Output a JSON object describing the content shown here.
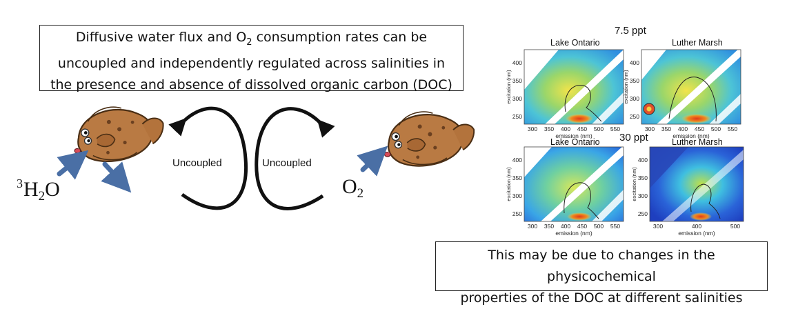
{
  "summary": {
    "line1_pre": "Diffusive water flux and O",
    "line1_sub": "2",
    "line1_post": " consumption rates can be",
    "line2": "uncoupled and independently regulated across salinities in",
    "line3": "the presence and absence of dissolved organic carbon (DOC)"
  },
  "cycle": {
    "left_label": "Uncoupled",
    "right_label": "Uncoupled"
  },
  "chem": {
    "water_sup": "3",
    "water_h": "H",
    "water_sub": "2",
    "water_o": "O",
    "oxygen_o": "O",
    "oxygen_sub": "2"
  },
  "icons": [
    "flounder-fish-icon",
    "arrow-icon",
    "cycle-arrow-icon"
  ],
  "colors": {
    "arrow_blue": "#4a6fa5",
    "fish_body": "#b97a43",
    "box_border": "#222222"
  },
  "panels": {
    "salinity_top": "7.5 ppt",
    "salinity_bottom": "30 ppt",
    "items": [
      {
        "title": "Lake Ontario",
        "ylabel": "excitation (nm)",
        "xlabel": "emission (nm)",
        "xticks": [
          "300",
          "350",
          "400",
          "450",
          "500",
          "550"
        ],
        "yticks": [
          "400",
          "350",
          "300",
          "250"
        ]
      },
      {
        "title": "Luther Marsh",
        "ylabel": "excitation (nm)",
        "xlabel": "emission (nm)",
        "xticks": [
          "300",
          "350",
          "400",
          "450",
          "500",
          "550"
        ],
        "yticks": [
          "400",
          "350",
          "300",
          "250"
        ]
      },
      {
        "title": "Lake Ontario",
        "ylabel": "excitation (nm)",
        "xlabel": "emission (nm)",
        "xticks": [
          "300",
          "350",
          "400",
          "450",
          "500",
          "550"
        ],
        "yticks": [
          "400",
          "350",
          "300",
          "250"
        ]
      },
      {
        "title": "Luther Marsh",
        "ylabel": "excitation (nm)",
        "xlabel": "emission (nm)",
        "xticks": [
          "300",
          "400",
          "500"
        ],
        "yticks": [
          "400",
          "350",
          "300",
          "250"
        ]
      }
    ]
  },
  "conclusion": {
    "line1": "This may be due to changes in the physicochemical",
    "line2": "properties of the DOC at different salinities"
  }
}
